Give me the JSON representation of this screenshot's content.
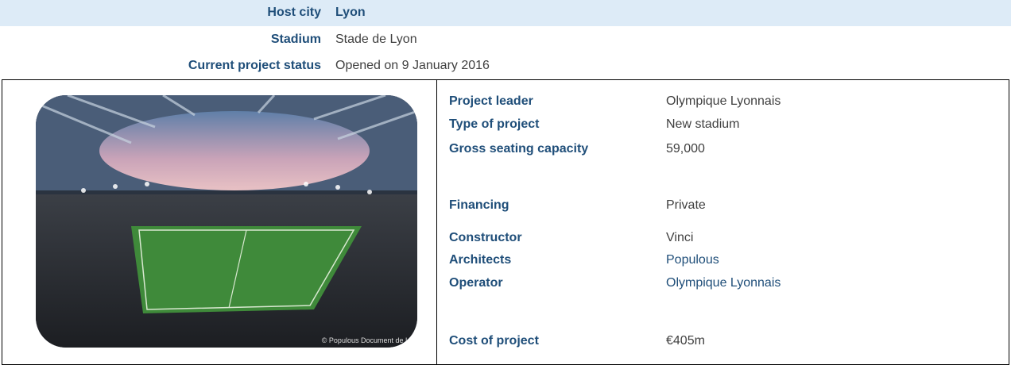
{
  "header": {
    "rows": [
      {
        "label": "Host city",
        "value": "Lyon"
      },
      {
        "label": "Stadium",
        "value": "Stade de Lyon"
      },
      {
        "label": "Current project status",
        "value": "Opened on 9 January 2016"
      }
    ]
  },
  "image": {
    "credit": "© Populous Document de L"
  },
  "details": {
    "rows": [
      {
        "label": "Project leader",
        "value": "Olympique Lyonnais"
      },
      {
        "label": "Type of project",
        "value": "New stadium"
      },
      {
        "label": "Gross seating capacity",
        "value": "59,000"
      },
      {
        "label": "Financing",
        "value": "Private"
      },
      {
        "label": "Constructor",
        "value": "Vinci"
      },
      {
        "label": "Architects",
        "value": "Populous"
      },
      {
        "label": "Operator",
        "value": "Olympique Lyonnais"
      },
      {
        "label": "Cost of project",
        "value": "€405m"
      }
    ]
  }
}
